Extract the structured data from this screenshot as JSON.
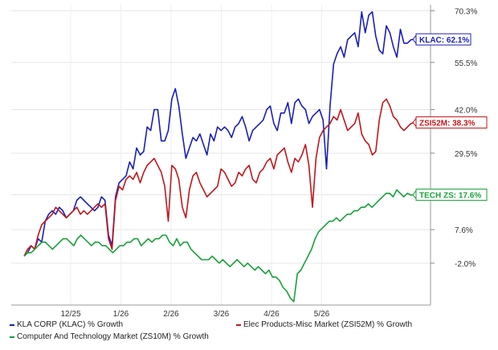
{
  "chart_data": {
    "type": "line",
    "x_ticks": [
      "12/25",
      "1/26",
      "2/26",
      "3/26",
      "4/26",
      "5/26"
    ],
    "y_ticks": [
      "70.3%",
      "55.5%",
      "42.0%",
      "29.5%",
      "",
      "7.6%",
      "-2.0%"
    ],
    "y_tick_values": [
      70.3,
      55.5,
      42.0,
      29.5,
      17.6,
      7.6,
      -2.0
    ],
    "ylim": [
      -14,
      72
    ],
    "grid": true,
    "legend_position": "bottom",
    "series": [
      {
        "name": "KLA CORP (KLAC) % Growth",
        "color": "#1a1fb8",
        "end_label": "KLAC: 62.1%",
        "values": [
          0,
          1,
          3,
          2,
          5,
          4,
          10,
          12,
          13,
          12,
          14,
          13,
          11,
          12,
          13,
          16,
          17,
          16,
          15,
          14,
          13,
          14,
          17,
          16,
          6,
          3,
          17,
          21,
          22,
          23,
          27,
          25,
          31,
          29,
          30,
          37,
          36,
          42,
          42,
          33,
          33,
          36,
          45,
          48,
          43,
          35,
          28,
          31,
          34,
          33,
          35,
          32,
          29,
          35,
          33,
          37,
          36,
          37,
          36,
          34,
          37,
          38,
          40,
          37,
          33,
          36,
          37,
          38,
          39,
          42,
          43,
          38,
          36,
          41,
          41,
          44,
          38,
          44,
          45,
          43,
          42,
          38,
          40,
          41,
          42,
          39,
          25,
          43,
          55,
          58,
          60,
          57,
          62,
          63,
          64,
          60,
          70,
          64,
          69,
          70,
          63,
          59,
          58,
          66,
          64,
          60,
          57,
          65,
          61,
          61,
          62,
          62.1
        ]
      },
      {
        "name": "Elec Products-Misc Market (ZSI52M) % Growth",
        "color": "#c0171c",
        "end_label": "ZSI52M: 38.3%",
        "values": [
          0,
          2,
          3,
          2,
          6,
          9,
          10,
          11,
          12,
          14,
          13,
          12,
          11,
          12,
          13,
          14,
          12,
          13,
          12,
          13,
          14,
          15,
          14,
          15,
          5,
          2,
          16,
          20,
          19,
          22,
          23,
          22,
          24,
          21,
          24,
          26,
          27,
          28,
          26,
          24,
          20,
          10,
          26,
          25,
          22,
          14,
          11,
          19,
          23,
          24,
          21,
          19,
          17,
          18,
          19,
          20,
          25,
          24,
          22,
          20,
          21,
          24,
          23,
          25,
          26,
          22,
          21,
          24,
          25,
          27,
          28,
          25,
          29,
          30,
          31,
          27,
          24,
          28,
          27,
          29,
          32,
          26,
          14,
          28,
          34,
          36,
          37,
          38,
          40,
          39,
          42,
          39,
          36,
          37,
          38,
          41,
          35,
          33,
          32,
          29,
          30,
          39,
          44,
          45,
          43,
          40,
          39,
          37,
          36,
          37,
          38,
          38.3
        ]
      },
      {
        "name": "Computer And Technology Market (ZS10M) % Growth",
        "color": "#19a03a",
        "end_label": "TECH ZS: 17.6%",
        "values": [
          0,
          1,
          1,
          2,
          3,
          4,
          4,
          3,
          2,
          3,
          4,
          5,
          5,
          4,
          3,
          5,
          6,
          5,
          4,
          3,
          4,
          4,
          3,
          3,
          2,
          1,
          2,
          3,
          3,
          4,
          4,
          5,
          5,
          3,
          4,
          5,
          4,
          5,
          5,
          6,
          6,
          4,
          3,
          5,
          3,
          4,
          4,
          2,
          1,
          0,
          -1,
          -1,
          -1,
          0,
          -1,
          -2,
          -1,
          -2,
          -3,
          -2,
          -1,
          -2,
          -3,
          -2,
          -3,
          -4,
          -3,
          -4,
          -5,
          -4,
          -6,
          -6,
          -7,
          -9,
          -10,
          -12,
          -13,
          -5,
          -4,
          -2,
          0,
          2,
          5,
          7,
          8,
          9,
          10,
          10,
          11,
          10,
          11,
          12,
          12,
          13,
          13,
          14,
          14,
          15,
          14,
          15,
          16,
          17,
          18,
          18,
          17,
          19,
          18,
          17,
          18,
          17.5,
          17.6
        ]
      }
    ]
  },
  "legend": {
    "items": [
      {
        "label": "KLA CORP (KLAC) % Growth",
        "color": "#1a1fb8"
      },
      {
        "label": "Elec Products-Misc Market (ZSI52M) % Growth",
        "color": "#c0171c"
      },
      {
        "label": "Computer And Technology Market (ZS10M) % Growth",
        "color": "#19a03a"
      }
    ]
  }
}
